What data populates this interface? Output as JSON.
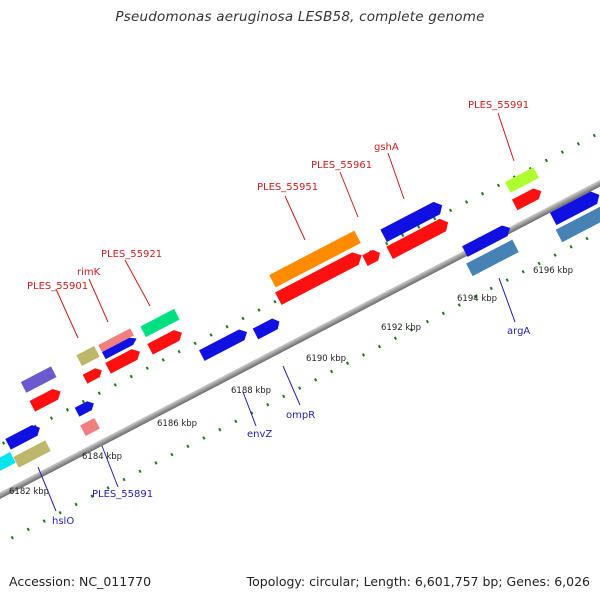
{
  "title": "Pseudomonas aeruginosa LESB58, complete genome",
  "footer": {
    "accession": "Accession: NC_011770",
    "summary": "Topology: circular; Length: 6,601,757 bp; Genes: 6,026"
  },
  "ticks": {
    "k6182": "6182 kbp",
    "k6184": "6184 kbp",
    "k6186": "6186 kbp",
    "k6188": "6188 kbp",
    "k6190": "6190 kbp",
    "k6192": "6192 kbp",
    "k6194": "6194 kbp",
    "k6196": "6196 kbp"
  },
  "labels": {
    "ples55901": "PLES_55901",
    "rimK": "rimK",
    "ples55921": "PLES_55921",
    "ples55951": "PLES_55951",
    "ples55961": "PLES_55961",
    "gshA": "gshA",
    "ples55991": "PLES_55991",
    "ples55891": "PLES_55891",
    "hslO": "hslO",
    "envZ": "envZ",
    "ompR": "ompR",
    "argA": "argA"
  },
  "colors": {
    "cds": "#ff1010",
    "forward_gene": "#1010e0",
    "label_red": "#c81e1e",
    "label_blue": "#1f1fb4",
    "tick_green": "#1a7a1a",
    "backbone": "#888888"
  }
}
